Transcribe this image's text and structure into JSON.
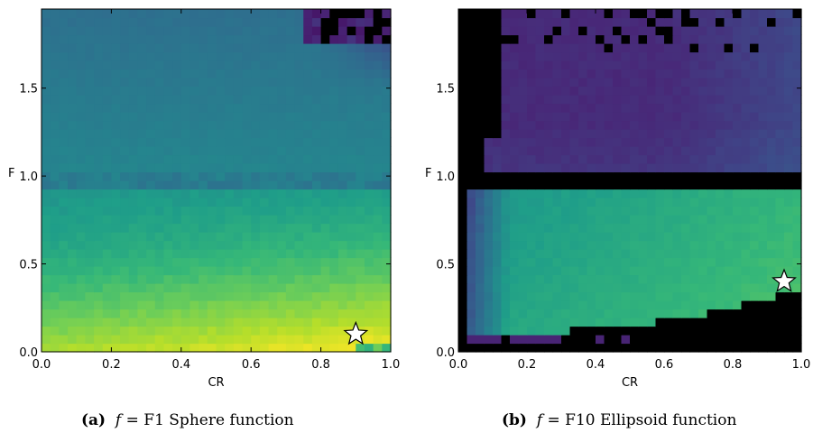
{
  "chart_data": [
    {
      "type": "heatmap",
      "function": "F1 Sphere function",
      "xlabel": "CR",
      "ylabel": "F",
      "xlim": [
        0.0,
        1.0
      ],
      "ylim": [
        0.0,
        1.95
      ],
      "xticks": [
        "0.0",
        "0.2",
        "0.4",
        "0.6",
        "0.8",
        "1.0"
      ],
      "yticks": [
        "0.0",
        "0.5",
        "1.0",
        "1.5"
      ],
      "colormap": "viridis",
      "grid": false,
      "best_marker": {
        "symbol": "star",
        "CR": 0.9,
        "F": 0.1
      }
    },
    {
      "type": "heatmap",
      "function": "F10 Ellipsoid function",
      "xlabel": "CR",
      "ylabel": "F",
      "xlim": [
        0.0,
        1.0
      ],
      "ylim": [
        0.0,
        1.95
      ],
      "xticks": [
        "0.0",
        "0.2",
        "0.4",
        "0.6",
        "0.8",
        "1.0"
      ],
      "yticks": [
        "0.0",
        "0.5",
        "1.0",
        "1.5"
      ],
      "colormap": "viridis",
      "grid": false,
      "best_marker": {
        "symbol": "star",
        "CR": 0.95,
        "F": 0.4
      }
    }
  ],
  "captions": [
    {
      "tag": "(a)",
      "var": "f",
      "eq": "= F1 Sphere function"
    },
    {
      "tag": "(b)",
      "var": "f",
      "eq": "= F10 Ellipsoid function"
    }
  ],
  "colors": {
    "viridis": [
      "#440154",
      "#482878",
      "#3e4989",
      "#31688e",
      "#26828e",
      "#1f9e89",
      "#35b779",
      "#6ece58",
      "#b5de2b",
      "#fde725"
    ],
    "masked": "#000000",
    "star_fill": "#ffffff",
    "star_stroke": "#000000"
  }
}
